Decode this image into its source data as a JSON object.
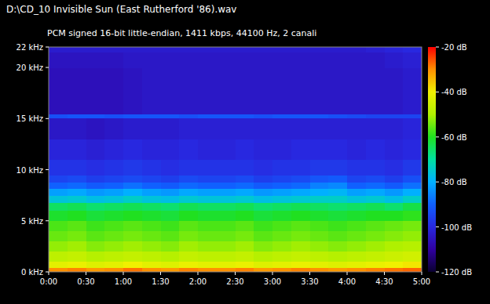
{
  "chart_data": {
    "type": "heatmap",
    "title": "D:\\CD_10 Invisible Sun (East Rutherford '86).wav",
    "subtitle": "PCM signed 16-bit little-endian, 1411 kbps, 44100 Hz, 2 canali",
    "xlim": [
      0,
      300
    ],
    "xticks": [
      {
        "value": 0,
        "label": "0:00"
      },
      {
        "value": 30,
        "label": "0:30"
      },
      {
        "value": 60,
        "label": "1:00"
      },
      {
        "value": 90,
        "label": "1:30"
      },
      {
        "value": 120,
        "label": "2:00"
      },
      {
        "value": 150,
        "label": "2:30"
      },
      {
        "value": 180,
        "label": "3:00"
      },
      {
        "value": 210,
        "label": "3:30"
      },
      {
        "value": 240,
        "label": "4:00"
      },
      {
        "value": 270,
        "label": "4:30"
      },
      {
        "value": 300,
        "label": "5:00"
      }
    ],
    "ylim": [
      0,
      22
    ],
    "yticks": [
      {
        "value": 0,
        "label": "0 kHz"
      },
      {
        "value": 5,
        "label": "5 kHz"
      },
      {
        "value": 10,
        "label": "10 kHz"
      },
      {
        "value": 15,
        "label": "15 kHz"
      },
      {
        "value": 20,
        "label": "20 kHz"
      },
      {
        "value": 22,
        "label": "22 kHz"
      }
    ],
    "x_edges": [
      0,
      15,
      30,
      45,
      60,
      75,
      90,
      105,
      120,
      135,
      150,
      165,
      180,
      195,
      210,
      225,
      240,
      255,
      270,
      285,
      300
    ],
    "y_edges": [
      0,
      0.4,
      1,
      2,
      3,
      4,
      5,
      6,
      6.8,
      7.5,
      8.2,
      8.8,
      9.5,
      11,
      13,
      15.1,
      15.45,
      18,
      20,
      21.5,
      22
    ],
    "cells": [
      [
        -30,
        -29,
        -31,
        -30,
        -28,
        -30,
        -31,
        -29,
        -30,
        -30,
        -29,
        -31,
        -30,
        -29,
        -30,
        -31,
        -30,
        -29,
        -28,
        -27
      ],
      [
        -42,
        -41,
        -43,
        -42,
        -40,
        -42,
        -43,
        -41,
        -42,
        -42,
        -41,
        -43,
        -42,
        -41,
        -42,
        -43,
        -42,
        -41,
        -40,
        -39
      ],
      [
        -48,
        -47,
        -49,
        -48,
        -47,
        -48,
        -49,
        -47,
        -48,
        -48,
        -47,
        -49,
        -48,
        -47,
        -48,
        -49,
        -48,
        -47,
        -46,
        -45
      ],
      [
        -52,
        -51,
        -53,
        -52,
        -51,
        -52,
        -53,
        -51,
        -52,
        -52,
        -51,
        -53,
        -52,
        -51,
        -52,
        -53,
        -52,
        -51,
        -50,
        -49
      ],
      [
        -55,
        -54,
        -56,
        -55,
        -54,
        -55,
        -56,
        -54,
        -55,
        -55,
        -54,
        -56,
        -55,
        -54,
        -55,
        -56,
        -55,
        -54,
        -53,
        -52
      ],
      [
        -57,
        -56,
        -58,
        -57,
        -56,
        -57,
        -58,
        -56,
        -57,
        -57,
        -56,
        -58,
        -57,
        -56,
        -57,
        -58,
        -57,
        -56,
        -55,
        -54
      ],
      [
        -61,
        -60,
        -62,
        -61,
        -60,
        -61,
        -62,
        -60,
        -61,
        -61,
        -60,
        -62,
        -61,
        -60,
        -61,
        -62,
        -61,
        -60,
        -60,
        -59
      ],
      [
        -65,
        -64,
        -66,
        -65,
        -64,
        -65,
        -66,
        -64,
        -65,
        -65,
        -64,
        -66,
        -65,
        -64,
        -65,
        -66,
        -65,
        -64,
        -66,
        -63
      ],
      [
        -76,
        -75,
        -77,
        -76,
        -74,
        -76,
        -77,
        -75,
        -76,
        -76,
        -75,
        -77,
        -76,
        -75,
        -74,
        -74,
        -76,
        -75,
        -77,
        -74
      ],
      [
        -82,
        -81,
        -83,
        -82,
        -80,
        -82,
        -83,
        -81,
        -82,
        -82,
        -81,
        -83,
        -82,
        -81,
        -80,
        -79,
        -82,
        -81,
        -83,
        -80
      ],
      [
        -90,
        -89,
        -91,
        -90,
        -88,
        -90,
        -91,
        -89,
        -90,
        -90,
        -89,
        -91,
        -90,
        -89,
        -86,
        -85,
        -90,
        -89,
        -91,
        -88
      ],
      [
        -95,
        -94,
        -96,
        -95,
        -94,
        -95,
        -96,
        -94,
        -95,
        -95,
        -94,
        -96,
        -95,
        -94,
        -92,
        -91,
        -95,
        -94,
        -96,
        -93
      ],
      [
        -98,
        -98,
        -99,
        -98,
        -97,
        -98,
        -99,
        -98,
        -98,
        -98,
        -98,
        -99,
        -98,
        -98,
        -97,
        -97,
        -98,
        -98,
        -99,
        -97
      ],
      [
        -101,
        -101,
        -102,
        -101,
        -100,
        -101,
        -101,
        -100,
        -101,
        -101,
        -100,
        -101,
        -101,
        -100,
        -100,
        -100,
        -101,
        -100,
        -101,
        -100
      ],
      [
        -104,
        -104,
        -105,
        -104,
        -103,
        -103,
        -103,
        -102,
        -102,
        -102,
        -102,
        -102,
        -102,
        -102,
        -102,
        -102,
        -102,
        -102,
        -102,
        -101
      ],
      [
        -93,
        -92,
        -92,
        -93,
        -92,
        -92,
        -92,
        -93,
        -92,
        -92,
        -92,
        -93,
        -92,
        -92,
        -92,
        -93,
        -94,
        -95,
        -95,
        -95
      ],
      [
        -106,
        -106,
        -106,
        -106,
        -105,
        -104,
        -104,
        -104,
        -104,
        -104,
        -104,
        -104,
        -104,
        -104,
        -104,
        -104,
        -104,
        -104,
        -104,
        -103
      ],
      [
        -106,
        -106,
        -106,
        -106,
        -105,
        -104,
        -104,
        -104,
        -104,
        -104,
        -104,
        -104,
        -104,
        -104,
        -104,
        -104,
        -104,
        -104,
        -104,
        -103
      ],
      [
        -105,
        -105,
        -105,
        -105,
        -104,
        -104,
        -104,
        -104,
        -104,
        -104,
        -104,
        -104,
        -104,
        -104,
        -104,
        -104,
        -104,
        -104,
        -103,
        -102
      ],
      [
        -103,
        -103,
        -103,
        -103,
        -103,
        -103,
        -103,
        -103,
        -103,
        -103,
        -103,
        -103,
        -103,
        -103,
        -103,
        -103,
        -103,
        -102,
        -101,
        -100
      ]
    ],
    "clim": [
      -120,
      -20
    ],
    "cticks": [
      {
        "value": -20,
        "label": "-20 dB"
      },
      {
        "value": -40,
        "label": "-40 dB"
      },
      {
        "value": -60,
        "label": "-60 dB"
      },
      {
        "value": -80,
        "label": "-80 dB"
      },
      {
        "value": -100,
        "label": "-100 dB"
      },
      {
        "value": -120,
        "label": "-120 dB"
      }
    ]
  }
}
